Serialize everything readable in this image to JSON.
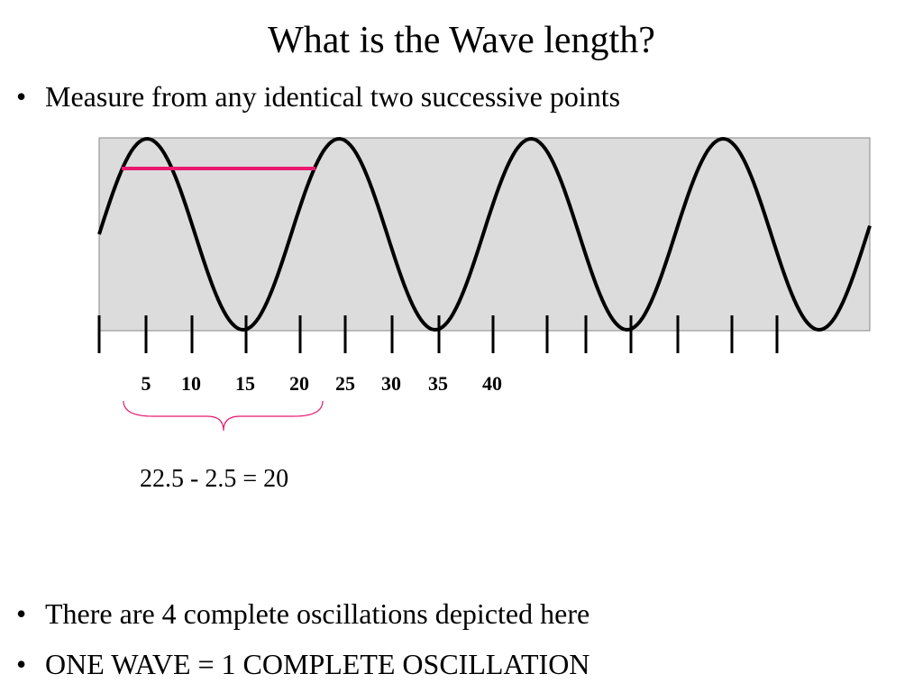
{
  "header": {
    "title": "What is the Wave length?"
  },
  "bullets_top": [
    "Measure from any identical two successive points"
  ],
  "diagram": {
    "axis_labels": [
      "5",
      "10",
      "15",
      "20",
      "25",
      "30",
      "35",
      "40"
    ],
    "equation": "22.5 - 2.5 = 20"
  },
  "bullets_bottom": [
    "There are 4 complete oscillations depicted here",
    "ONE WAVE = 1 COMPLETE OSCILLATION"
  ]
}
